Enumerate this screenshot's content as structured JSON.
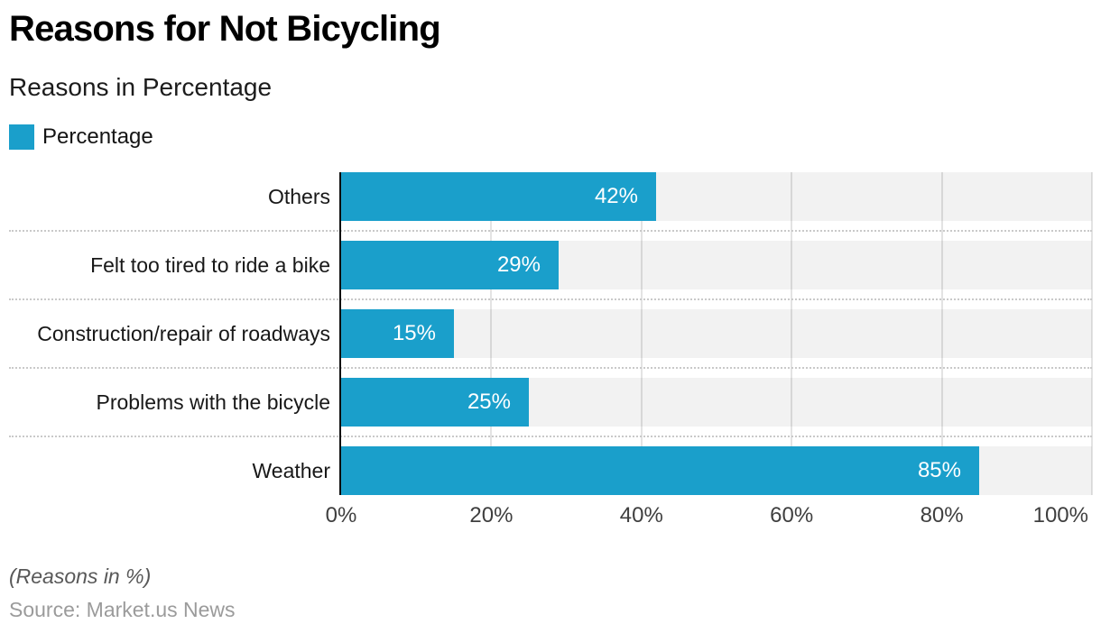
{
  "header": {
    "title": "Reasons for Not Bicycling",
    "subtitle": "Reasons in Percentage"
  },
  "legend": {
    "label": "Percentage"
  },
  "chart_data": {
    "type": "bar",
    "orientation": "horizontal",
    "title": "Reasons for Not Bicycling",
    "subtitle": "Reasons in Percentage",
    "categories": [
      "Others",
      "Felt too tired to ride a bike",
      "Construction/repair of roadways",
      "Problems with the bicycle",
      "Weather"
    ],
    "series": [
      {
        "name": "Percentage",
        "values": [
          42,
          29,
          15,
          25,
          85
        ]
      }
    ],
    "value_labels": [
      "42%",
      "29%",
      "15%",
      "25%",
      "85%"
    ],
    "x_ticks": [
      0,
      20,
      40,
      60,
      80,
      100
    ],
    "x_tick_labels": [
      "0%",
      "20%",
      "40%",
      "60%",
      "80%",
      "100%"
    ],
    "xlim": [
      0,
      100
    ],
    "grid": true,
    "legend_position": "top-left",
    "colors": {
      "bar": "#1a9fcb",
      "track": "#f2f2f2",
      "gridline": "rgba(0,0,0,0.11)",
      "axis": "#0d0d0d",
      "separator": "#c9c9c9",
      "value_label": "#ffffff"
    }
  },
  "footer": {
    "note": "(Reasons in %)",
    "source": "Source: Market.us News"
  }
}
